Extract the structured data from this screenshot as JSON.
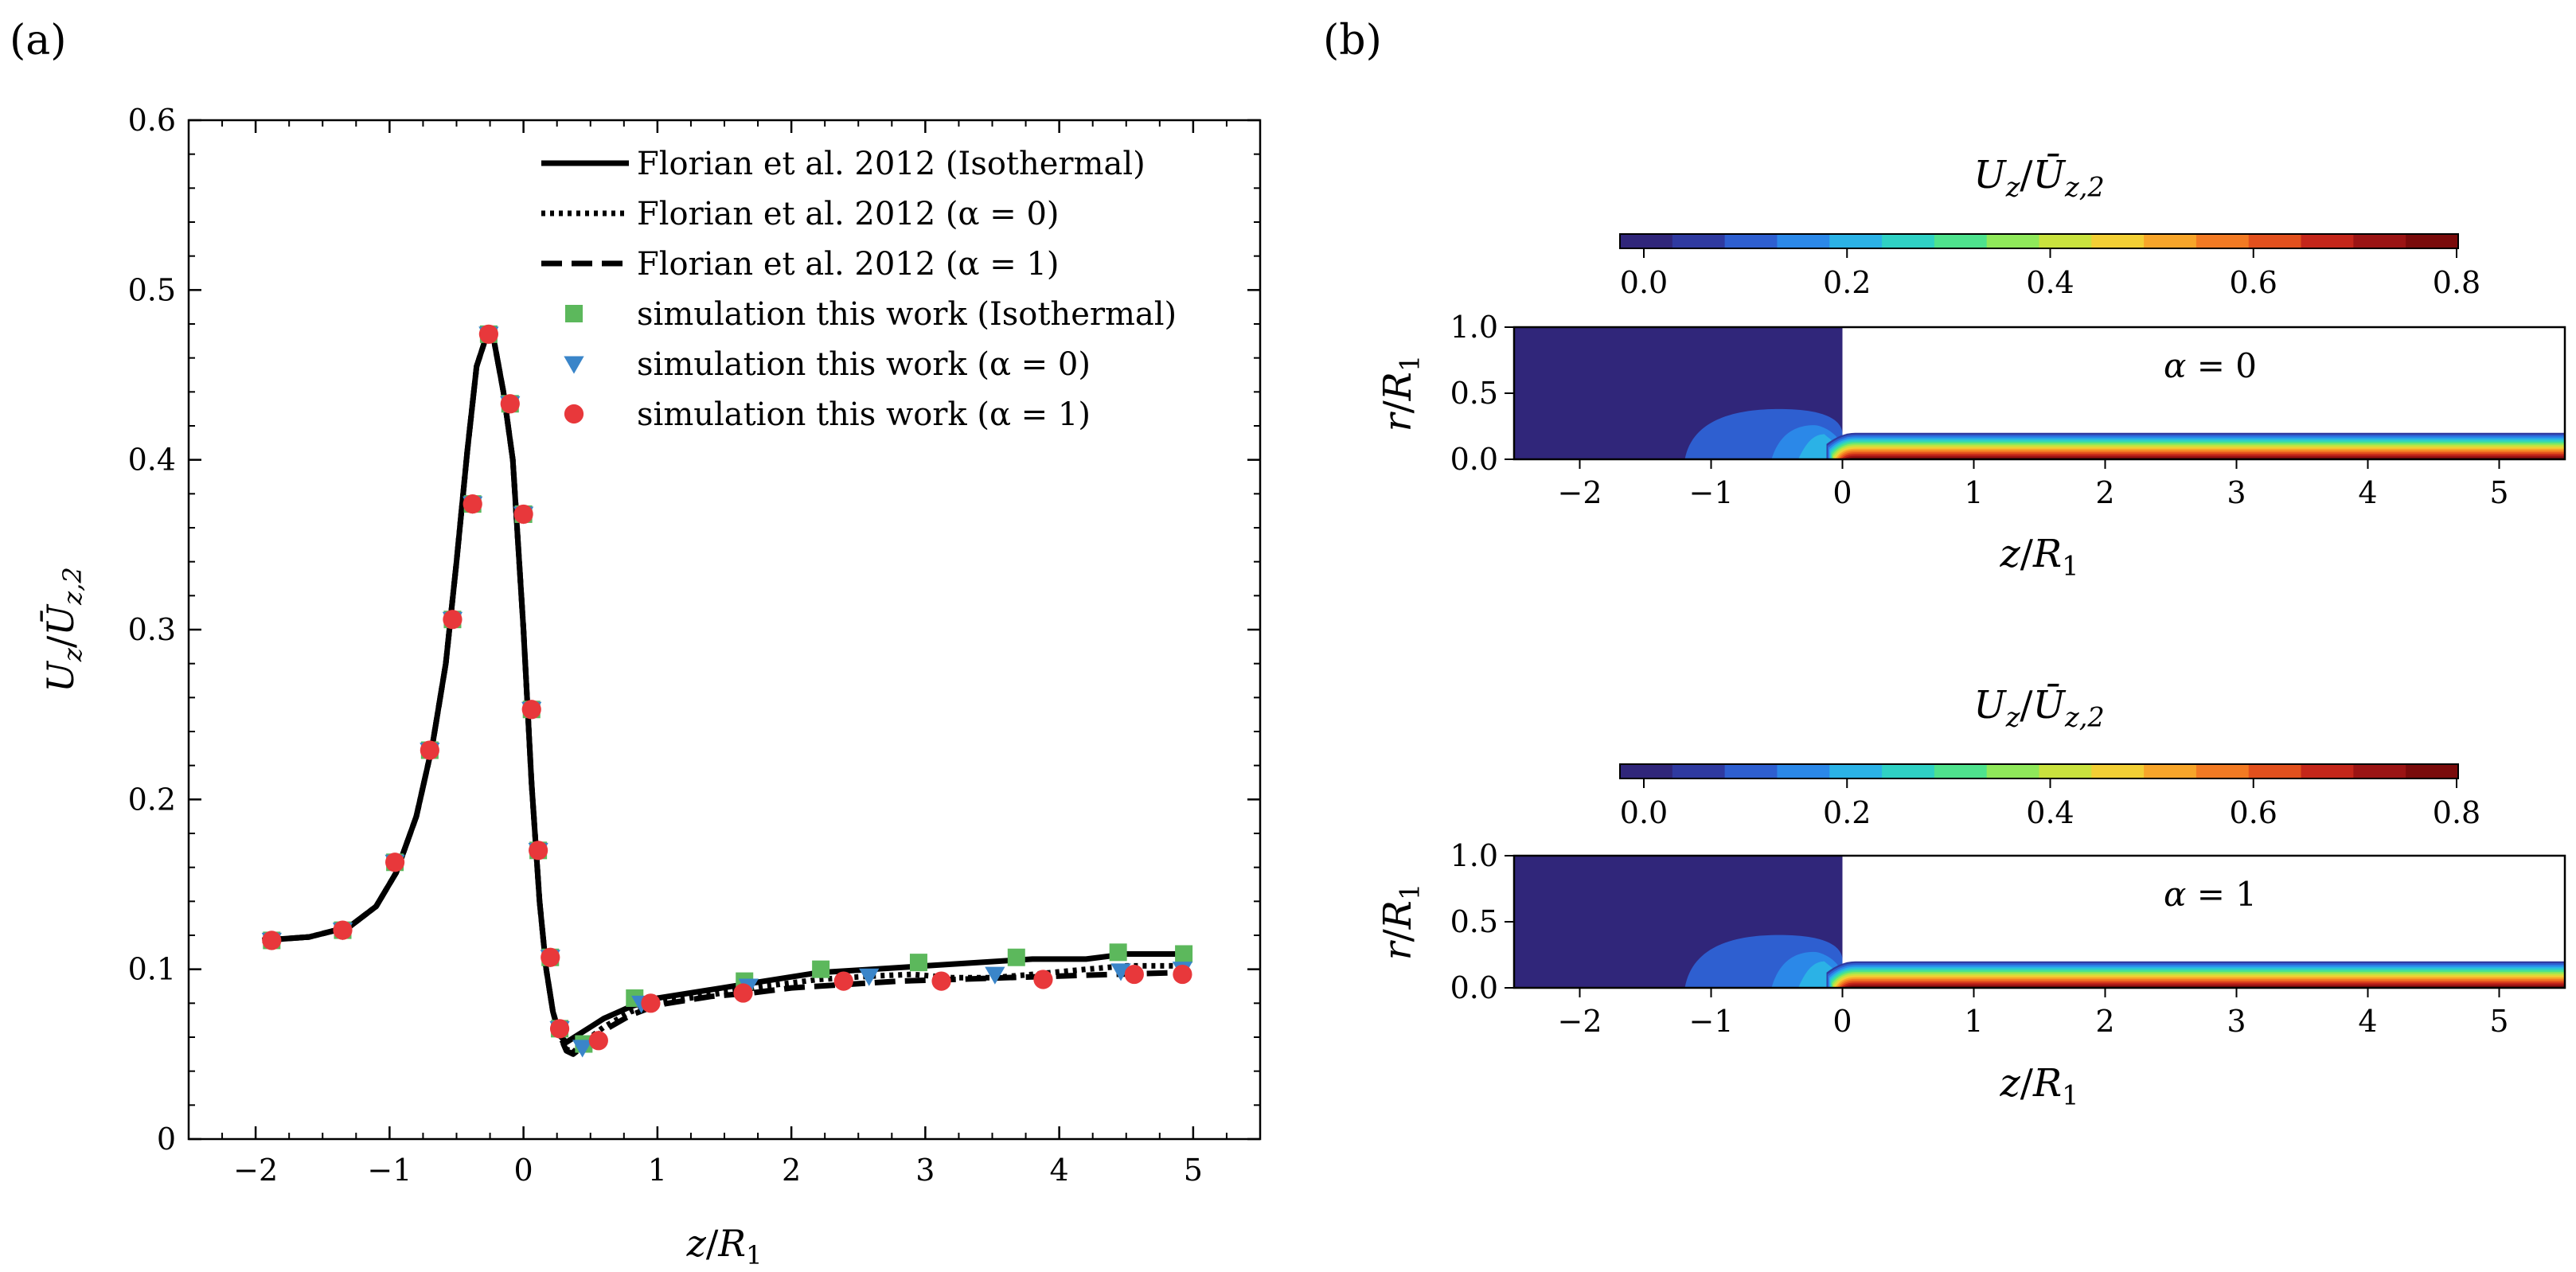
{
  "panel_labels": [
    "(a)",
    "(b)"
  ],
  "chart_data": [
    {
      "type": "line",
      "panel": "(a)",
      "xlabel": "z/R1",
      "ylabel": "Uz/Ūz,2",
      "xlim": [
        -2.5,
        5.5
      ],
      "ylim": [
        0,
        0.6
      ],
      "xticks": [
        -2,
        -1,
        0,
        1,
        2,
        3,
        4,
        5
      ],
      "xtick_labels": [
        "−2",
        "−1",
        "0",
        "1",
        "2",
        "3",
        "4",
        "5"
      ],
      "yticks": [
        0,
        0.1,
        0.2,
        0.3,
        0.4,
        0.5,
        0.6
      ],
      "ytick_labels": [
        "0",
        "0.1",
        "0.2",
        "0.3",
        "0.4",
        "0.5",
        "0.6"
      ],
      "legend_position": "top-right",
      "series": [
        {
          "name": "Florian et al. 2012 (Isothermal)",
          "style": "solid",
          "color": "#000000",
          "x": [
            -1.95,
            -1.6,
            -1.3,
            -1.1,
            -0.95,
            -0.8,
            -0.68,
            -0.58,
            -0.5,
            -0.42,
            -0.35,
            -0.28,
            -0.22,
            -0.15,
            -0.08,
            0.0,
            0.06,
            0.12,
            0.17,
            0.22,
            0.27,
            0.32,
            0.38,
            0.44,
            0.5,
            0.6,
            0.8,
            1.0,
            1.4,
            1.8,
            2.2,
            2.6,
            3.0,
            3.4,
            3.8,
            4.2,
            4.5,
            4.9
          ],
          "y": [
            0.117,
            0.119,
            0.125,
            0.137,
            0.157,
            0.19,
            0.232,
            0.28,
            0.34,
            0.405,
            0.455,
            0.472,
            0.47,
            0.44,
            0.4,
            0.3,
            0.21,
            0.14,
            0.1,
            0.075,
            0.061,
            0.057,
            0.06,
            0.063,
            0.066,
            0.071,
            0.078,
            0.083,
            0.088,
            0.093,
            0.098,
            0.1,
            0.102,
            0.104,
            0.106,
            0.106,
            0.109,
            0.109
          ]
        },
        {
          "name": "Florian et al. 2012 (α = 0)",
          "style": "dotted",
          "color": "#000000",
          "x": [
            -1.95,
            -1.6,
            -1.3,
            -1.1,
            -0.95,
            -0.8,
            -0.68,
            -0.58,
            -0.5,
            -0.42,
            -0.35,
            -0.28,
            -0.22,
            -0.15,
            -0.08,
            0.0,
            0.06,
            0.12,
            0.17,
            0.22,
            0.27,
            0.32,
            0.37,
            0.42,
            0.5,
            0.6,
            0.8,
            1.0,
            1.4,
            1.8,
            2.2,
            2.6,
            2.9,
            3.2,
            3.5,
            3.8,
            4.2,
            4.5,
            4.9
          ],
          "y": [
            0.117,
            0.119,
            0.125,
            0.137,
            0.157,
            0.19,
            0.232,
            0.28,
            0.34,
            0.405,
            0.455,
            0.472,
            0.47,
            0.44,
            0.4,
            0.3,
            0.21,
            0.14,
            0.1,
            0.075,
            0.061,
            0.053,
            0.051,
            0.055,
            0.06,
            0.066,
            0.075,
            0.08,
            0.085,
            0.09,
            0.094,
            0.096,
            0.097,
            0.095,
            0.095,
            0.097,
            0.1,
            0.102,
            0.102
          ]
        },
        {
          "name": "Florian et al. 2012 (α = 1)",
          "style": "dashed",
          "color": "#000000",
          "x": [
            -1.95,
            -1.6,
            -1.3,
            -1.1,
            -0.95,
            -0.8,
            -0.68,
            -0.58,
            -0.5,
            -0.42,
            -0.35,
            -0.28,
            -0.22,
            -0.15,
            -0.08,
            0.0,
            0.06,
            0.12,
            0.17,
            0.22,
            0.27,
            0.32,
            0.37,
            0.42,
            0.5,
            0.6,
            0.8,
            1.0,
            1.4,
            1.7,
            2.0,
            2.4,
            2.8,
            3.2,
            3.6,
            4.0,
            4.4,
            4.9
          ],
          "y": [
            0.117,
            0.119,
            0.125,
            0.137,
            0.157,
            0.19,
            0.232,
            0.28,
            0.34,
            0.405,
            0.455,
            0.472,
            0.47,
            0.44,
            0.4,
            0.3,
            0.21,
            0.14,
            0.1,
            0.075,
            0.061,
            0.052,
            0.05,
            0.053,
            0.058,
            0.064,
            0.073,
            0.079,
            0.084,
            0.086,
            0.089,
            0.091,
            0.093,
            0.094,
            0.095,
            0.096,
            0.097,
            0.098
          ]
        },
        {
          "name": "simulation this work (Isothermal)",
          "marker": "square",
          "color": "#5cb85c",
          "x": [
            -1.88,
            -1.35,
            -0.96,
            -0.7,
            -0.53,
            -0.38,
            -0.26,
            -0.1,
            0.0,
            0.06,
            0.11,
            0.2,
            0.27,
            0.45,
            0.83,
            1.65,
            2.22,
            2.95,
            3.68,
            4.44,
            4.93
          ],
          "y": [
            0.117,
            0.123,
            0.163,
            0.229,
            0.306,
            0.374,
            0.474,
            0.433,
            0.368,
            0.253,
            0.17,
            0.107,
            0.065,
            0.056,
            0.083,
            0.093,
            0.1,
            0.104,
            0.107,
            0.11,
            0.109
          ]
        },
        {
          "name": "simulation this work (α = 0)",
          "marker": "triangle-down",
          "color": "#3a85c9",
          "x": [
            -1.88,
            -1.35,
            -0.96,
            -0.7,
            -0.53,
            -0.38,
            -0.26,
            -0.1,
            0.0,
            0.06,
            0.11,
            0.2,
            0.27,
            0.44,
            0.88,
            1.68,
            2.58,
            3.52,
            4.46,
            4.92
          ],
          "y": [
            0.117,
            0.123,
            0.163,
            0.229,
            0.306,
            0.374,
            0.474,
            0.433,
            0.368,
            0.253,
            0.17,
            0.107,
            0.065,
            0.054,
            0.08,
            0.09,
            0.096,
            0.097,
            0.099,
            0.1
          ]
        },
        {
          "name": "simulation this work (α = 1)",
          "marker": "circle",
          "color": "#e8383b",
          "x": [
            -1.88,
            -1.35,
            -0.96,
            -0.7,
            -0.53,
            -0.38,
            -0.26,
            -0.1,
            0.0,
            0.06,
            0.11,
            0.2,
            0.27,
            0.56,
            0.95,
            1.64,
            2.39,
            3.12,
            3.88,
            4.56,
            4.92
          ],
          "y": [
            0.117,
            0.123,
            0.163,
            0.229,
            0.306,
            0.374,
            0.474,
            0.433,
            0.368,
            0.253,
            0.17,
            0.107,
            0.065,
            0.058,
            0.08,
            0.086,
            0.093,
            0.093,
            0.094,
            0.097,
            0.097
          ]
        }
      ]
    },
    {
      "type": "heatmap",
      "panel": "(b) top",
      "title": "Uz/Ūz,2",
      "annotation": "α = 0",
      "xlabel": "z/R1",
      "ylabel": "r/R1",
      "xlim": [
        -2.5,
        5.5
      ],
      "ylim": [
        0,
        1.0
      ],
      "xticks": [
        -2,
        -1,
        0,
        1,
        2,
        3,
        4,
        5
      ],
      "xtick_labels": [
        "−2",
        "−1",
        "0",
        "1",
        "2",
        "3",
        "4",
        "5"
      ],
      "yticks": [
        0,
        0.5,
        1.0
      ],
      "ytick_labels": [
        "0.0",
        "0.5",
        "1.0"
      ],
      "colorbar_range": [
        0,
        0.8
      ],
      "colorbar_ticks": [
        "0.0",
        "0.2",
        "0.4",
        "0.6",
        "0.8"
      ],
      "colormap": "jet",
      "domain": {
        "inlet_z_range": [
          -2.5,
          0
        ],
        "inlet_r_max": 1.0,
        "jet_r_max": 0.2,
        "recirculation_z_range": [
          -1.2,
          0
        ],
        "recirculation_r_max": 0.38
      }
    },
    {
      "type": "heatmap",
      "panel": "(b) bottom",
      "title": "Uz/Ūz,2",
      "annotation": "α = 1",
      "xlabel": "z/R1",
      "ylabel": "r/R1",
      "xlim": [
        -2.5,
        5.5
      ],
      "ylim": [
        0,
        1.0
      ],
      "xticks": [
        -2,
        -1,
        0,
        1,
        2,
        3,
        4,
        5
      ],
      "xtick_labels": [
        "−2",
        "−1",
        "0",
        "1",
        "2",
        "3",
        "4",
        "5"
      ],
      "yticks": [
        0,
        0.5,
        1.0
      ],
      "ytick_labels": [
        "0.0",
        "0.5",
        "1.0"
      ],
      "colorbar_range": [
        0,
        0.8
      ],
      "colorbar_ticks": [
        "0.0",
        "0.2",
        "0.4",
        "0.6",
        "0.8"
      ],
      "colormap": "jet",
      "domain": {
        "inlet_z_range": [
          -2.5,
          0
        ],
        "inlet_r_max": 1.0,
        "jet_r_max": 0.2,
        "recirculation_z_range": [
          -1.2,
          0
        ],
        "recirculation_r_max": 0.4
      }
    }
  ],
  "colors": {
    "jet": [
      "#30267a",
      "#2f3aa0",
      "#2e5fd0",
      "#2b88e8",
      "#2bb2e6",
      "#2fd1c4",
      "#4ee28d",
      "#8fe85a",
      "#c9e23e",
      "#f2cf35",
      "#f7a52a",
      "#f27a23",
      "#e2501d",
      "#c4261a",
      "#9b1414",
      "#7a0b0b"
    ]
  }
}
